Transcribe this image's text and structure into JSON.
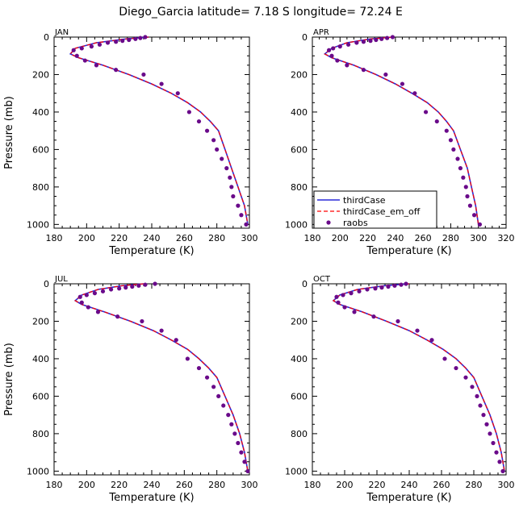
{
  "title": "Diego_Garcia   latitude= 7.18 S longitude= 72.24 E",
  "colors": {
    "thirdCase": "#2a2ad8",
    "thirdCase_em_off": "#ff0000",
    "raobs": "#6a0a8a"
  },
  "legend": {
    "placement": "lower-left of APR panel",
    "entries": [
      "thirdCase",
      "thirdCase_em_off",
      "raobs"
    ]
  },
  "chart_data": [
    {
      "type": "line",
      "panel_label": "JAN",
      "xlabel": "Temperature (K)",
      "ylabel": "Pressure (mb)",
      "xlim": [
        180,
        300
      ],
      "ylim": [
        1020,
        0
      ],
      "xticks": [
        180,
        200,
        220,
        240,
        260,
        280,
        300
      ],
      "yticks": [
        0,
        200,
        400,
        600,
        800,
        1000
      ],
      "series": [
        {
          "name": "thirdCase",
          "style": "solid",
          "x": [
            238,
            224,
            206,
            193,
            190,
            195,
            210,
            226,
            240,
            252,
            262,
            270,
            276,
            281,
            285,
            289,
            293,
            297,
            299
          ],
          "y": [
            0,
            10,
            30,
            60,
            90,
            110,
            150,
            200,
            250,
            300,
            350,
            400,
            450,
            500,
            600,
            700,
            800,
            900,
            1000
          ]
        },
        {
          "name": "thirdCase_em_off",
          "style": "dashed",
          "x": [
            238,
            224,
            206,
            193,
            190,
            195,
            210,
            226,
            240,
            252,
            262,
            270,
            276,
            281,
            285,
            289,
            293,
            297,
            299
          ],
          "y": [
            0,
            10,
            30,
            60,
            90,
            110,
            150,
            200,
            250,
            300,
            350,
            400,
            450,
            500,
            600,
            700,
            800,
            900,
            1000
          ]
        },
        {
          "name": "raobs",
          "style": "points",
          "x": [
            236,
            233,
            230,
            226,
            222,
            218,
            213,
            208,
            203,
            197,
            192,
            194,
            199,
            206,
            218,
            235,
            246,
            256,
            263,
            269,
            274,
            278,
            280,
            283,
            286,
            288,
            289,
            290,
            293,
            295,
            298
          ],
          "y": [
            0,
            5,
            10,
            15,
            20,
            25,
            30,
            40,
            50,
            60,
            70,
            100,
            125,
            150,
            175,
            200,
            250,
            300,
            400,
            450,
            500,
            550,
            600,
            650,
            700,
            750,
            800,
            850,
            900,
            950,
            1000
          ]
        }
      ]
    },
    {
      "type": "line",
      "panel_label": "APR",
      "xlabel": "Temperature (K)",
      "ylabel": "",
      "xlim": [
        180,
        320
      ],
      "ylim": [
        1020,
        0
      ],
      "xticks": [
        180,
        200,
        220,
        240,
        260,
        280,
        300,
        320
      ],
      "yticks": [
        0,
        200,
        400,
        600,
        800,
        1000
      ],
      "series": [
        {
          "name": "thirdCase",
          "style": "solid",
          "x": [
            238,
            222,
            205,
            194,
            189,
            194,
            210,
            226,
            240,
            252,
            263,
            271,
            277,
            282,
            287,
            292,
            295,
            298,
            300
          ],
          "y": [
            0,
            10,
            30,
            60,
            90,
            110,
            150,
            200,
            250,
            300,
            350,
            400,
            450,
            500,
            600,
            700,
            800,
            900,
            1000
          ]
        },
        {
          "name": "thirdCase_em_off",
          "style": "dashed",
          "x": [
            238,
            222,
            205,
            194,
            189,
            194,
            210,
            226,
            240,
            252,
            263,
            271,
            277,
            282,
            287,
            292,
            295,
            298,
            300
          ],
          "y": [
            0,
            10,
            30,
            60,
            90,
            110,
            150,
            200,
            250,
            300,
            350,
            400,
            450,
            500,
            600,
            700,
            800,
            900,
            1000
          ]
        },
        {
          "name": "raobs",
          "style": "points",
          "x": [
            238,
            234,
            230,
            226,
            222,
            217,
            212,
            206,
            200,
            195,
            192,
            194,
            198,
            205,
            217,
            233,
            245,
            254,
            262,
            270,
            277,
            280,
            282,
            285,
            287,
            289,
            291,
            292,
            294,
            297,
            301
          ],
          "y": [
            0,
            5,
            10,
            15,
            20,
            25,
            30,
            40,
            50,
            60,
            70,
            100,
            125,
            150,
            175,
            200,
            250,
            300,
            400,
            450,
            500,
            550,
            600,
            650,
            700,
            750,
            800,
            850,
            900,
            950,
            1000
          ]
        }
      ]
    },
    {
      "type": "line",
      "panel_label": "JUL",
      "xlabel": "Temperature (K)",
      "ylabel": "Pressure (mb)",
      "xlim": [
        180,
        300
      ],
      "ylim": [
        1020,
        0
      ],
      "xticks": [
        180,
        200,
        220,
        240,
        260,
        280,
        300
      ],
      "yticks": [
        0,
        200,
        400,
        600,
        800,
        1000
      ],
      "series": [
        {
          "name": "thirdCase",
          "style": "solid",
          "x": [
            235,
            222,
            207,
            197,
            193,
            197,
            211,
            227,
            241,
            252,
            262,
            269,
            275,
            280,
            285,
            290,
            294,
            297,
            299
          ],
          "y": [
            0,
            10,
            30,
            60,
            90,
            110,
            150,
            200,
            250,
            300,
            350,
            400,
            450,
            500,
            600,
            700,
            800,
            900,
            1000
          ]
        },
        {
          "name": "thirdCase_em_off",
          "style": "dashed",
          "x": [
            235,
            222,
            207,
            197,
            193,
            197,
            211,
            227,
            241,
            252,
            262,
            269,
            275,
            280,
            285,
            290,
            294,
            297,
            299
          ],
          "y": [
            0,
            10,
            30,
            60,
            90,
            110,
            150,
            200,
            250,
            300,
            350,
            400,
            450,
            500,
            600,
            700,
            800,
            900,
            1000
          ]
        },
        {
          "name": "raobs",
          "style": "points",
          "x": [
            242,
            236,
            232,
            228,
            224,
            220,
            215,
            210,
            205,
            200,
            196,
            197,
            201,
            207,
            219,
            234,
            246,
            255,
            262,
            269,
            274,
            278,
            281,
            284,
            287,
            289,
            291,
            293,
            295,
            297,
            299
          ],
          "y": [
            0,
            5,
            10,
            15,
            20,
            25,
            30,
            40,
            50,
            60,
            70,
            100,
            125,
            150,
            175,
            200,
            250,
            300,
            400,
            450,
            500,
            550,
            600,
            650,
            700,
            750,
            800,
            850,
            900,
            950,
            1000
          ]
        }
      ]
    },
    {
      "type": "line",
      "panel_label": "OCT",
      "xlabel": "Temperature (K)",
      "ylabel": "",
      "xlim": [
        180,
        300
      ],
      "ylim": [
        1020,
        0
      ],
      "xticks": [
        180,
        200,
        220,
        240,
        260,
        280,
        300
      ],
      "yticks": [
        0,
        200,
        400,
        600,
        800,
        1000
      ],
      "series": [
        {
          "name": "thirdCase",
          "style": "solid",
          "x": [
            240,
            225,
            208,
            197,
            193,
            197,
            211,
            226,
            240,
            251,
            261,
            269,
            275,
            280,
            285,
            290,
            294,
            297,
            299
          ],
          "y": [
            0,
            10,
            30,
            60,
            90,
            110,
            150,
            200,
            250,
            300,
            350,
            400,
            450,
            500,
            600,
            700,
            800,
            900,
            1000
          ]
        },
        {
          "name": "thirdCase_em_off",
          "style": "dashed",
          "x": [
            240,
            225,
            208,
            197,
            193,
            197,
            211,
            226,
            240,
            251,
            261,
            269,
            275,
            280,
            285,
            290,
            294,
            297,
            299
          ],
          "y": [
            0,
            10,
            30,
            60,
            90,
            110,
            150,
            200,
            250,
            300,
            350,
            400,
            450,
            500,
            600,
            700,
            800,
            900,
            1000
          ]
        },
        {
          "name": "raobs",
          "style": "points",
          "x": [
            238,
            235,
            231,
            227,
            223,
            219,
            214,
            209,
            204,
            199,
            195,
            196,
            200,
            206,
            218,
            233,
            245,
            254,
            262,
            269,
            275,
            279,
            282,
            284,
            286,
            288,
            290,
            292,
            294,
            296,
            298
          ],
          "y": [
            0,
            5,
            10,
            15,
            20,
            25,
            30,
            40,
            50,
            60,
            70,
            100,
            125,
            150,
            175,
            200,
            250,
            300,
            400,
            450,
            500,
            550,
            600,
            650,
            700,
            750,
            800,
            850,
            900,
            950,
            1000
          ]
        }
      ]
    }
  ]
}
